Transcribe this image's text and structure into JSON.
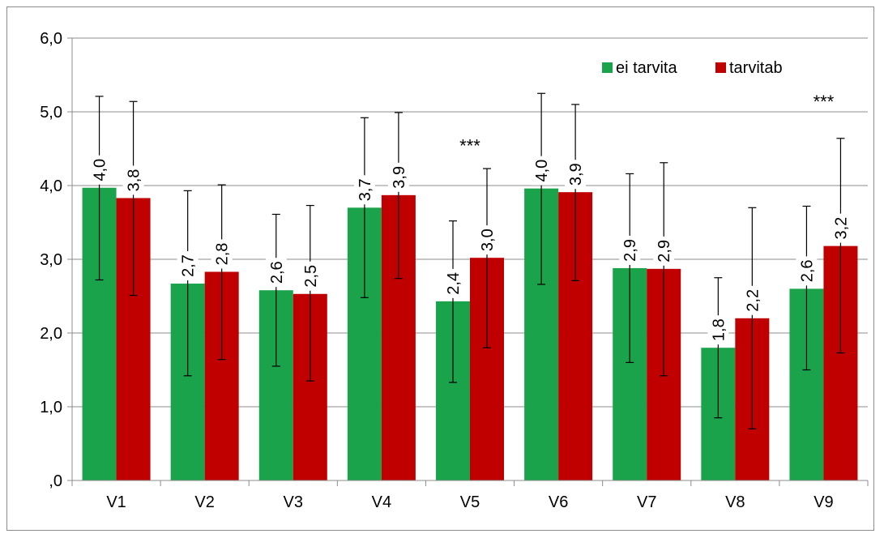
{
  "chart_data": {
    "type": "bar",
    "categories": [
      "V1",
      "V2",
      "V3",
      "V4",
      "V5",
      "V6",
      "V7",
      "V8",
      "V9"
    ],
    "series": [
      {
        "name": "ei tarvita",
        "color": "#1aa34a",
        "values": [
          3.97,
          2.67,
          2.58,
          3.7,
          2.43,
          3.96,
          2.88,
          1.8,
          2.6
        ],
        "labels": [
          "4,0",
          "2,7",
          "2,6",
          "3,7",
          "2,4",
          "4,0",
          "2,9",
          "1,8",
          "2,6"
        ],
        "error_low": [
          2.72,
          1.42,
          1.55,
          2.48,
          1.33,
          2.66,
          1.6,
          0.85,
          1.5
        ],
        "error_high": [
          5.21,
          3.93,
          3.61,
          4.92,
          3.52,
          5.25,
          4.16,
          2.75,
          3.72
        ]
      },
      {
        "name": "tarvitab",
        "color": "#c00000",
        "values": [
          3.83,
          2.83,
          2.53,
          3.87,
          3.02,
          3.91,
          2.87,
          2.2,
          3.18
        ],
        "labels": [
          "3,8",
          "2,8",
          "2,5",
          "3,9",
          "3,0",
          "3,9",
          "2,9",
          "2,2",
          "3,2"
        ],
        "error_low": [
          2.51,
          1.64,
          1.35,
          2.74,
          1.8,
          2.71,
          1.42,
          0.7,
          1.73
        ],
        "error_high": [
          5.14,
          4.01,
          3.73,
          4.99,
          4.23,
          5.1,
          4.31,
          3.7,
          4.64
        ]
      }
    ],
    "annotations": [
      {
        "category": "V5",
        "text": "***",
        "y": 4.5
      },
      {
        "category": "V9",
        "text": "***",
        "y": 5.1
      }
    ],
    "ylim": [
      0,
      6
    ],
    "yticks": [
      0,
      1,
      2,
      3,
      4,
      5,
      6
    ],
    "ytick_labels": [
      ",0",
      "1,0",
      "2,0",
      "3,0",
      "4,0",
      "5,0",
      "6,0"
    ],
    "grid": true,
    "legend_position": "top-right",
    "title": "",
    "xlabel": "",
    "ylabel": ""
  }
}
